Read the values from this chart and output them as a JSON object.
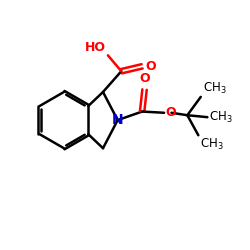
{
  "bg_color": "#ffffff",
  "bond_color": "#000000",
  "N_color": "#0000cd",
  "O_color": "#ff0000",
  "line_width": 1.8,
  "font_size": 9,
  "figsize": [
    2.5,
    2.5
  ],
  "dpi": 100,
  "xlim": [
    0,
    10
  ],
  "ylim": [
    0,
    10
  ]
}
